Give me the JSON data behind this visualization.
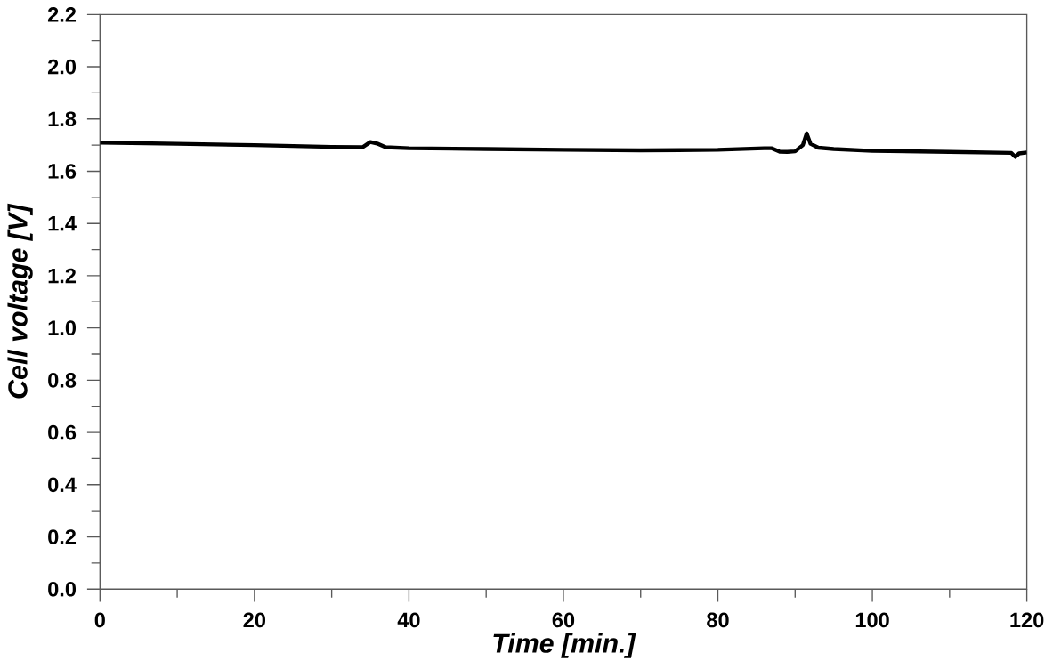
{
  "chart_data": {
    "type": "line",
    "xlabel": "Time  [min.]",
    "ylabel": "Cell voltage  [V]",
    "series": [
      {
        "color": "#000000",
        "x": [
          0,
          10,
          20,
          30,
          34,
          35,
          36,
          37,
          40,
          50,
          60,
          70,
          80,
          86,
          87,
          88,
          89,
          90,
          91,
          91.5,
          92,
          93,
          95,
          100,
          110,
          118,
          118.5,
          119,
          120
        ],
        "values": [
          1.71,
          1.705,
          1.7,
          1.693,
          1.692,
          1.712,
          1.705,
          1.692,
          1.688,
          1.685,
          1.682,
          1.68,
          1.682,
          1.688,
          1.688,
          1.675,
          1.674,
          1.676,
          1.7,
          1.745,
          1.705,
          1.69,
          1.685,
          1.678,
          1.674,
          1.67,
          1.655,
          1.668,
          1.672
        ]
      }
    ],
    "xlim": [
      0,
      120
    ],
    "ylim": [
      0,
      2.2
    ],
    "xticks": [
      0,
      20,
      40,
      60,
      80,
      100,
      120
    ],
    "yticks": [
      "0.0",
      0.2,
      0.4,
      0.6,
      0.8,
      "1.0",
      1.2,
      1.4,
      1.6,
      1.8,
      "2.0",
      2.2
    ],
    "grid": false,
    "marker": "none",
    "line_style": "solid"
  }
}
